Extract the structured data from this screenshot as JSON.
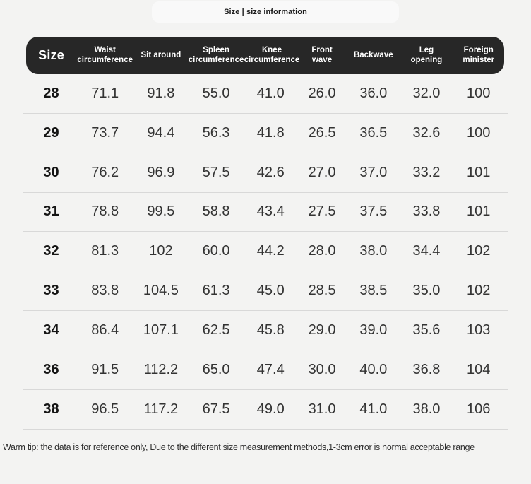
{
  "header": {
    "title": "Size | size information"
  },
  "size_table": {
    "columns": [
      "Size",
      "Waist circumference",
      "Sit around",
      "Spleen circumference",
      "Knee circumference",
      "Front wave",
      "Backwave",
      "Leg opening",
      "Foreign minister"
    ],
    "rows": [
      [
        "28",
        "71.1",
        "91.8",
        "55.0",
        "41.0",
        "26.0",
        "36.0",
        "32.0",
        "100"
      ],
      [
        "29",
        "73.7",
        "94.4",
        "56.3",
        "41.8",
        "26.5",
        "36.5",
        "32.6",
        "100"
      ],
      [
        "30",
        "76.2",
        "96.9",
        "57.5",
        "42.6",
        "27.0",
        "37.0",
        "33.2",
        "101"
      ],
      [
        "31",
        "78.8",
        "99.5",
        "58.8",
        "43.4",
        "27.5",
        "37.5",
        "33.8",
        "101"
      ],
      [
        "32",
        "81.3",
        "102",
        "60.0",
        "44.2",
        "28.0",
        "38.0",
        "34.4",
        "102"
      ],
      [
        "33",
        "83.8",
        "104.5",
        "61.3",
        "45.0",
        "28.5",
        "38.5",
        "35.0",
        "102"
      ],
      [
        "34",
        "86.4",
        "107.1",
        "62.5",
        "45.8",
        "29.0",
        "39.0",
        "35.6",
        "103"
      ],
      [
        "36",
        "91.5",
        "112.2",
        "65.0",
        "47.4",
        "30.0",
        "40.0",
        "36.8",
        "104"
      ],
      [
        "38",
        "96.5",
        "117.2",
        "67.5",
        "49.0",
        "31.0",
        "41.0",
        "38.0",
        "106"
      ]
    ]
  },
  "footer": {
    "warm_tip": "Warm tip: the data is for reference only, Due to the different size measurement methods,1-3cm error is normal acceptable range"
  },
  "colors": {
    "page_bg": "#f3f3f2",
    "table_header_bg": "#272727",
    "table_header_text": "#ffffff",
    "row_divider": "#d8d8d8",
    "value_text": "#333333"
  }
}
